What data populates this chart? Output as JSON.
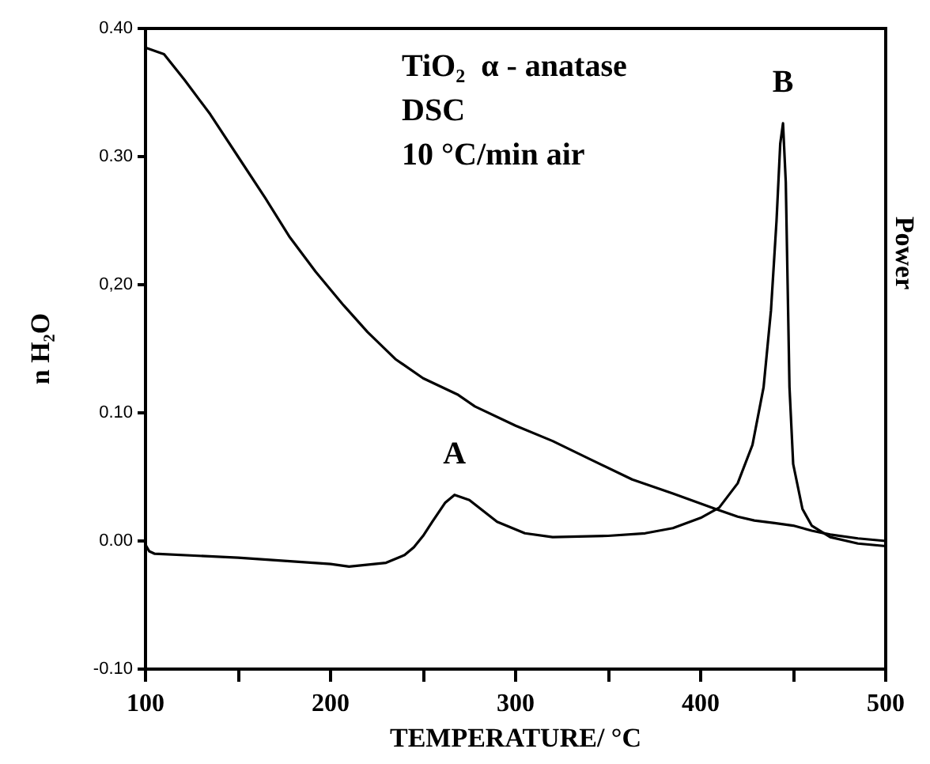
{
  "chart_data": {
    "type": "line",
    "xlabel": "TEMPERATURE/ °C",
    "ylabel": "n H₂O",
    "y2label": "Power",
    "annotations": [
      "TiO₂  α - anatase",
      "DSC",
      "10 °C/min air",
      {
        "text": "A",
        "x": 267,
        "y": 0.036
      },
      {
        "text": "B",
        "x": 444.5,
        "y": 0.326
      }
    ],
    "xlim": [
      100,
      500
    ],
    "xticks": [
      100,
      {
        "value": 150,
        "label": null
      },
      200,
      {
        "value": 250,
        "label": null
      },
      300,
      {
        "value": 350,
        "label": null
      },
      400,
      {
        "value": 450,
        "label": null
      },
      500
    ],
    "ylim": [
      -0.1,
      0.4
    ],
    "yticks": [
      {
        "value": -0.1,
        "label": "-0.10"
      },
      {
        "value": 0,
        "label": "0.00"
      },
      {
        "value": 0.1,
        "label": "0.10"
      },
      {
        "value": 0.2,
        "label": "0,20"
      },
      {
        "value": 0.3,
        "label": "0.30"
      },
      {
        "value": 0.4,
        "label": "0.40"
      }
    ],
    "grid": false,
    "marker": "none",
    "line_style": "solid",
    "series": [
      {
        "color": "#000000",
        "x": [
          100,
          110,
          121,
          135,
          150,
          165,
          178,
          192,
          207,
          220,
          235,
          250,
          269,
          278,
          300,
          320,
          340,
          363,
          385,
          408,
          420,
          429,
          440,
          450,
          460,
          470,
          485,
          500
        ],
        "values": [
          0.385,
          0.38,
          0.36,
          0.333,
          0.3,
          0.267,
          0.237,
          0.21,
          0.184,
          0.163,
          0.142,
          0.127,
          0.114,
          0.105,
          0.09,
          0.078,
          0.064,
          0.048,
          0.037,
          0.025,
          0.019,
          0.016,
          0.014,
          0.012,
          0.008,
          0.005,
          0.002,
          0.0
        ]
      },
      {
        "color": "#000000",
        "x": [
          100,
          102,
          105,
          150,
          200,
          210,
          230,
          240,
          245,
          250,
          255,
          262,
          267,
          275,
          290,
          305,
          320,
          350,
          370,
          385,
          400,
          410,
          420,
          428,
          434,
          438,
          441,
          443,
          444.5,
          446,
          447,
          448,
          450,
          455,
          460,
          470,
          485,
          500
        ],
        "values": [
          -0.003,
          -0.008,
          -0.01,
          -0.013,
          -0.018,
          -0.02,
          -0.017,
          -0.011,
          -0.005,
          0.004,
          0.015,
          0.03,
          0.036,
          0.032,
          0.015,
          0.006,
          0.003,
          0.004,
          0.006,
          0.01,
          0.018,
          0.026,
          0.045,
          0.075,
          0.12,
          0.18,
          0.25,
          0.31,
          0.326,
          0.28,
          0.2,
          0.12,
          0.06,
          0.025,
          0.012,
          0.003,
          -0.002,
          -0.004
        ]
      }
    ]
  }
}
